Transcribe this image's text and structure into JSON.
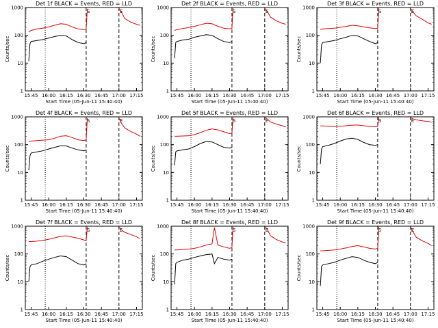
{
  "x_label": "Start Time (05-Jun-11 15:40:40)",
  "y_label": "Counts/sec",
  "y_ticks": [
    "1",
    "10",
    "100",
    "1000"
  ],
  "x_ticks": [
    "15:45",
    "16:00",
    "16:15",
    "16:30",
    "16:45",
    "17:00",
    "17:15"
  ],
  "marker_labels": [
    "S",
    "E"
  ],
  "colors": {
    "events": "#000000",
    "lld": "#e00000",
    "axis": "#000000"
  },
  "chart_data": [
    {
      "type": "line",
      "title": "Det 1f BLACK = Events, RED = LLD",
      "xlabel": "Start Time (05-Jun-11 15:40:40)",
      "ylabel": "Counts/sec",
      "xlim": [
        "15:40",
        "17:20"
      ],
      "ylim": [
        1,
        1000
      ],
      "yscale": "log",
      "vlines": [
        {
          "time": "15:57",
          "style": "dotted"
        },
        {
          "time": "16:32",
          "style": "dashed"
        },
        {
          "time": "17:00",
          "style": "dashed"
        }
      ],
      "series": [
        {
          "x": [
            "15:43",
            "15:45",
            "15:50",
            "15:55",
            "16:00",
            "16:05",
            "16:10",
            "16:15",
            "16:20",
            "16:25",
            "16:30",
            "16:32",
            "16:33"
          ],
          "y": [
            130,
            150,
            170,
            180,
            200,
            230,
            260,
            250,
            200,
            170,
            160,
            170,
            900
          ]
        },
        {
          "x": [
            "17:00",
            "17:02",
            "17:05",
            "17:10",
            "17:15",
            "17:18"
          ],
          "y": [
            950,
            700,
            400,
            300,
            250,
            230
          ]
        },
        {
          "x": [
            "15:43",
            "15:44",
            "15:45",
            "15:50",
            "15:55",
            "16:00",
            "16:05",
            "16:10",
            "16:15",
            "16:20",
            "16:25",
            "16:30",
            "16:32"
          ],
          "y": [
            12,
            50,
            60,
            65,
            70,
            80,
            90,
            100,
            95,
            70,
            55,
            50,
            55
          ]
        }
      ]
    },
    {
      "type": "line",
      "title": "Det 2f BLACK = Events, RED = LLD",
      "xlabel": "Start Time (05-Jun-11 15:40:40)",
      "ylabel": "Counts/sec",
      "xlim": [
        "15:40",
        "17:20"
      ],
      "ylim": [
        1,
        1000
      ],
      "yscale": "log",
      "vlines": [
        {
          "time": "15:57",
          "style": "dotted"
        },
        {
          "time": "16:32",
          "style": "dashed"
        },
        {
          "time": "17:00",
          "style": "dashed"
        }
      ],
      "series": [
        {
          "x": [
            "15:43",
            "15:45",
            "15:50",
            "15:55",
            "16:00",
            "16:05",
            "16:10",
            "16:15",
            "16:20",
            "16:25",
            "16:30",
            "16:32",
            "16:33"
          ],
          "y": [
            150,
            160,
            175,
            190,
            210,
            240,
            270,
            260,
            210,
            180,
            170,
            180,
            950
          ]
        },
        {
          "x": [
            "17:00",
            "17:02",
            "17:05",
            "17:10",
            "17:15",
            "17:18"
          ],
          "y": [
            950,
            750,
            450,
            330,
            270,
            250
          ]
        },
        {
          "x": [
            "15:43",
            "15:44",
            "15:45",
            "15:50",
            "15:55",
            "16:00",
            "16:05",
            "16:10",
            "16:15",
            "16:20",
            "16:25",
            "16:30",
            "16:32"
          ],
          "y": [
            15,
            55,
            60,
            68,
            72,
            85,
            95,
            105,
            100,
            75,
            60,
            55,
            60
          ]
        }
      ]
    },
    {
      "type": "line",
      "title": "Det 3f BLACK = Events, RED = LLD",
      "xlabel": "Start Time (05-Jun-11 15:40:40)",
      "ylabel": "Counts/sec",
      "xlim": [
        "15:40",
        "17:20"
      ],
      "ylim": [
        1,
        1000
      ],
      "yscale": "log",
      "vlines": [
        {
          "time": "15:57",
          "style": "dotted"
        },
        {
          "time": "16:32",
          "style": "dashed"
        },
        {
          "time": "17:00",
          "style": "dashed"
        }
      ],
      "series": [
        {
          "x": [
            "15:43",
            "15:45",
            "15:50",
            "15:55",
            "16:00",
            "16:05",
            "16:10",
            "16:15",
            "16:20",
            "16:25",
            "16:30",
            "16:32",
            "16:33"
          ],
          "y": [
            160,
            170,
            175,
            180,
            195,
            210,
            230,
            220,
            200,
            185,
            175,
            180,
            950
          ]
        },
        {
          "x": [
            "17:00",
            "17:02",
            "17:05",
            "17:10",
            "17:15",
            "17:18"
          ],
          "y": [
            950,
            700,
            500,
            380,
            280,
            250
          ]
        },
        {
          "x": [
            "15:43",
            "15:44",
            "15:45",
            "15:50",
            "15:55",
            "16:00",
            "16:05",
            "16:10",
            "16:15",
            "16:20",
            "16:25",
            "16:30",
            "16:32"
          ],
          "y": [
            10,
            45,
            55,
            60,
            65,
            75,
            85,
            100,
            95,
            75,
            60,
            50,
            55
          ]
        }
      ]
    },
    {
      "type": "line",
      "title": "Det 4f BLACK = Events, RED = LLD",
      "xlabel": "Start Time (05-Jun-11 15:40:40)",
      "ylabel": "Counts/sec",
      "xlim": [
        "15:40",
        "17:20"
      ],
      "ylim": [
        1,
        1000
      ],
      "yscale": "log",
      "vlines": [
        {
          "time": "15:57",
          "style": "dotted"
        },
        {
          "time": "16:32",
          "style": "dashed"
        },
        {
          "time": "17:00",
          "style": "dashed"
        }
      ],
      "series": [
        {
          "x": [
            "15:43",
            "15:45",
            "15:50",
            "15:55",
            "16:00",
            "16:05",
            "16:10",
            "16:15",
            "16:20",
            "16:25",
            "16:30",
            "16:32",
            "16:33"
          ],
          "y": [
            130,
            135,
            140,
            145,
            150,
            170,
            200,
            210,
            180,
            150,
            140,
            150,
            900
          ]
        },
        {
          "x": [
            "17:00",
            "17:02",
            "17:05",
            "17:10",
            "17:15",
            "17:18"
          ],
          "y": [
            900,
            600,
            400,
            300,
            240,
            200
          ]
        },
        {
          "x": [
            "15:43",
            "15:44",
            "15:45",
            "15:50",
            "15:55",
            "16:00",
            "16:05",
            "16:10",
            "16:15",
            "16:20",
            "16:25",
            "16:30",
            "16:32"
          ],
          "y": [
            12,
            40,
            50,
            55,
            60,
            70,
            80,
            90,
            90,
            75,
            65,
            60,
            65
          ]
        }
      ]
    },
    {
      "type": "line",
      "title": "Det 5f BLACK = Events, RED = LLD",
      "xlabel": "Start Time (05-Jun-11 15:40:40)",
      "ylabel": "Counts/sec",
      "xlim": [
        "15:40",
        "17:20"
      ],
      "ylim": [
        1,
        1000
      ],
      "yscale": "log",
      "vlines": [
        {
          "time": "15:57",
          "style": "dotted"
        },
        {
          "time": "16:32",
          "style": "dashed"
        },
        {
          "time": "17:00",
          "style": "dashed"
        }
      ],
      "series": [
        {
          "x": [
            "15:43",
            "15:45",
            "15:50",
            "15:55",
            "16:00",
            "16:05",
            "16:10",
            "16:15",
            "16:20",
            "16:25",
            "16:30",
            "16:32",
            "16:33"
          ],
          "y": [
            200,
            200,
            205,
            210,
            230,
            270,
            330,
            370,
            340,
            290,
            250,
            260,
            950
          ]
        },
        {
          "x": [
            "17:00",
            "17:02",
            "17:05",
            "17:10",
            "17:15",
            "17:18"
          ],
          "y": [
            950,
            850,
            650,
            550,
            480,
            430
          ]
        },
        {
          "x": [
            "15:43",
            "15:44",
            "15:45",
            "15:50",
            "15:55",
            "16:00",
            "16:05",
            "16:10",
            "16:15",
            "16:20",
            "16:25",
            "16:30",
            "16:32"
          ],
          "y": [
            18,
            55,
            60,
            65,
            70,
            85,
            110,
            130,
            125,
            100,
            80,
            75,
            80
          ]
        }
      ]
    },
    {
      "type": "line",
      "title": "Det 6f BLACK = Events, RED = LLD",
      "xlabel": "Start Time (05-Jun-11 15:40:40)",
      "ylabel": "Counts/sec",
      "xlim": [
        "15:40",
        "17:20"
      ],
      "ylim": [
        1,
        1000
      ],
      "yscale": "log",
      "vlines": [
        {
          "time": "15:57",
          "style": "dotted"
        },
        {
          "time": "16:32",
          "style": "dashed"
        },
        {
          "time": "17:00",
          "style": "dashed"
        }
      ],
      "series": [
        {
          "x": [
            "15:43",
            "15:45",
            "15:50",
            "15:55",
            "16:00",
            "16:05",
            "16:10",
            "16:15",
            "16:20",
            "16:25",
            "16:30",
            "16:32",
            "16:33"
          ],
          "y": [
            470,
            470,
            460,
            450,
            460,
            480,
            500,
            510,
            480,
            450,
            440,
            450,
            950
          ]
        },
        {
          "x": [
            "17:00",
            "17:02",
            "17:05",
            "17:10",
            "17:15",
            "17:18"
          ],
          "y": [
            950,
            850,
            780,
            720,
            680,
            640
          ]
        },
        {
          "x": [
            "15:43",
            "15:44",
            "15:45",
            "15:50",
            "15:55",
            "16:00",
            "16:05",
            "16:10",
            "16:15",
            "16:20",
            "16:25",
            "16:30",
            "16:32"
          ],
          "y": [
            20,
            70,
            85,
            95,
            110,
            135,
            160,
            170,
            155,
            120,
            100,
            95,
            100
          ]
        }
      ]
    },
    {
      "type": "line",
      "title": "Det 7f BLACK = Events, RED = LLD",
      "xlabel": "Start Time (05-Jun-11 15:40:40)",
      "ylabel": "Counts/sec",
      "xlim": [
        "15:40",
        "17:20"
      ],
      "ylim": [
        1,
        1000
      ],
      "yscale": "log",
      "vlines": [
        {
          "time": "15:57",
          "style": "dotted"
        },
        {
          "time": "16:32",
          "style": "dashed"
        },
        {
          "time": "17:00",
          "style": "dashed"
        }
      ],
      "series": [
        {
          "x": [
            "15:43",
            "15:45",
            "15:50",
            "15:55",
            "16:00",
            "16:05",
            "16:10",
            "16:15",
            "16:20",
            "16:25",
            "16:30",
            "16:32",
            "16:33"
          ],
          "y": [
            280,
            280,
            290,
            310,
            340,
            380,
            430,
            450,
            410,
            370,
            320,
            300,
            950
          ]
        },
        {
          "x": [
            "17:00",
            "17:02",
            "17:05",
            "17:10",
            "17:15",
            "17:18"
          ],
          "y": [
            950,
            750,
            600,
            500,
            420,
            350
          ]
        },
        {
          "x": [
            "15:43",
            "15:44",
            "15:45",
            "15:50",
            "15:55",
            "16:00",
            "16:05",
            "16:10",
            "16:15",
            "16:20",
            "16:25",
            "16:30",
            "16:32"
          ],
          "y": [
            10,
            35,
            40,
            45,
            55,
            65,
            75,
            85,
            80,
            60,
            45,
            40,
            45
          ]
        }
      ]
    },
    {
      "type": "line",
      "title": "Det 8f BLACK = Events, RED = LLD",
      "xlabel": "Start Time (05-Jun-11 15:40:40)",
      "ylabel": "Counts/sec",
      "xlim": [
        "15:40",
        "17:20"
      ],
      "ylim": [
        1,
        1000
      ],
      "yscale": "log",
      "vlines": [
        {
          "time": "15:57",
          "style": "dotted"
        },
        {
          "time": "16:32",
          "style": "dashed"
        },
        {
          "time": "17:00",
          "style": "dashed"
        }
      ],
      "series": [
        {
          "x": [
            "15:43",
            "15:45",
            "15:50",
            "15:55",
            "16:00",
            "16:05",
            "16:10",
            "16:15",
            "16:17",
            "16:20",
            "16:25",
            "16:30",
            "16:32",
            "16:33"
          ],
          "y": [
            140,
            140,
            145,
            150,
            160,
            180,
            210,
            230,
            900,
            210,
            180,
            160,
            170,
            950
          ]
        },
        {
          "x": [
            "17:00",
            "17:02",
            "17:05",
            "17:10",
            "17:15",
            "17:18"
          ],
          "y": [
            950,
            800,
            450,
            330,
            270,
            250
          ]
        },
        {
          "x": [
            "15:43",
            "15:44",
            "15:45",
            "15:50",
            "15:55",
            "16:00",
            "16:05",
            "16:10",
            "16:15",
            "16:17",
            "16:20",
            "16:25",
            "16:30",
            "16:32"
          ],
          "y": [
            8,
            45,
            50,
            60,
            65,
            75,
            85,
            95,
            100,
            45,
            75,
            65,
            60,
            65
          ]
        }
      ]
    },
    {
      "type": "line",
      "title": "Det 9f BLACK = Events, RED = LLD",
      "xlabel": "Start Time (05-Jun-11 15:40:40)",
      "ylabel": "Counts/sec",
      "xlim": [
        "15:40",
        "17:20"
      ],
      "ylim": [
        1,
        1000
      ],
      "yscale": "log",
      "vlines": [
        {
          "time": "15:57",
          "style": "dotted"
        },
        {
          "time": "16:32",
          "style": "dashed"
        },
        {
          "time": "17:00",
          "style": "dashed"
        }
      ],
      "series": [
        {
          "x": [
            "15:43",
            "15:45",
            "15:50",
            "15:55",
            "16:00",
            "16:05",
            "16:10",
            "16:15",
            "16:20",
            "16:25",
            "16:30",
            "16:32",
            "16:33"
          ],
          "y": [
            130,
            130,
            135,
            140,
            150,
            165,
            185,
            200,
            180,
            160,
            150,
            160,
            950
          ]
        },
        {
          "x": [
            "17:00",
            "17:02",
            "17:05",
            "17:10",
            "17:15",
            "17:18"
          ],
          "y": [
            950,
            650,
            400,
            300,
            240,
            200
          ]
        },
        {
          "x": [
            "15:43",
            "15:44",
            "15:45",
            "15:50",
            "15:55",
            "16:00",
            "16:05",
            "16:10",
            "16:15",
            "16:20",
            "16:25",
            "16:30",
            "16:32"
          ],
          "y": [
            7,
            35,
            40,
            45,
            50,
            60,
            70,
            80,
            75,
            60,
            50,
            45,
            50
          ]
        }
      ]
    }
  ]
}
